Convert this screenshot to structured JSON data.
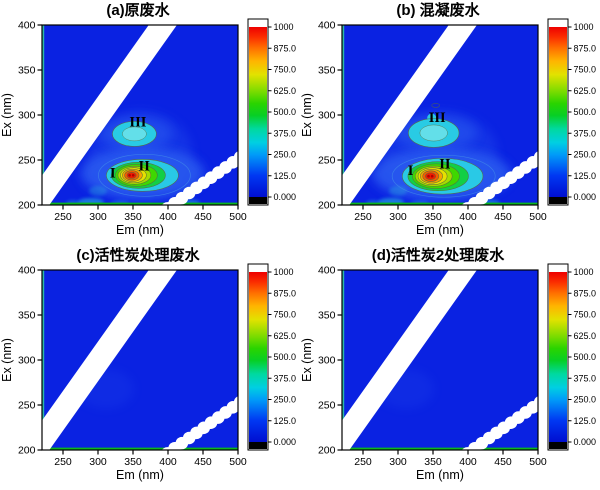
{
  "style": {
    "bg": "#0a22e2",
    "halo": "#2a5cf0",
    "cyan_blob": "#29cbe4",
    "cyan_blob_light": "#63dfe9",
    "left_strip": "#2cb8a6",
    "bottom_strip": "#0cb41e",
    "band": "#ffffff",
    "frame": "#000000",
    "contour_line": "#5a6e3c",
    "outer_contour": "#3f86e8",
    "core_dot": "#b20000",
    "ring_colors": [
      "#29c9e6",
      "#12cf45",
      "#3fd800",
      "#a6dc00",
      "#e6e000",
      "#f5a300",
      "#f55a00",
      "#ee1c00"
    ],
    "smudge": "#2fd0d8",
    "colorbar_over": "#ffffff",
    "colorbar_under": "#000000",
    "colorbar_stops": [
      [
        "0",
        "#000ed0"
      ],
      [
        "0.125",
        "#0037f2"
      ],
      [
        "0.25",
        "#009cf8"
      ],
      [
        "0.32",
        "#00cfe2"
      ],
      [
        "0.40",
        "#00d9a0"
      ],
      [
        "0.48",
        "#07cf25"
      ],
      [
        "0.55",
        "#2ad400"
      ],
      [
        "0.625",
        "#7fdc00"
      ],
      [
        "0.72",
        "#e2e200"
      ],
      [
        "0.80",
        "#ffb400"
      ],
      [
        "0.875",
        "#ff7000"
      ],
      [
        "0.94",
        "#fb2e00"
      ],
      [
        "1",
        "#ee0000"
      ]
    ]
  },
  "chart_data": [
    {
      "type": "heatmap",
      "panel": "a",
      "title": "(a)原废水",
      "xlabel": "Em (nm)",
      "ylabel": "Ex (nm)",
      "xlim": [
        220,
        500
      ],
      "ylim": [
        200,
        400
      ],
      "zlim": [
        0,
        1000
      ],
      "x_ticks": [
        250,
        300,
        350,
        400,
        450,
        500
      ],
      "y_ticks": [
        200,
        250,
        300,
        350,
        400
      ],
      "colorbar_ticks": [
        "1000",
        "875.0",
        "750.0",
        "625.0",
        "500.0",
        "375.0",
        "250.0",
        "125.0",
        "0.000"
      ],
      "background_intensity": 60,
      "rayleigh_bands": [
        "first-order Em≈Ex",
        "second-order Em≈2Ex"
      ],
      "region_labels": [
        {
          "text": "I",
          "em": 321,
          "ex": 236
        },
        {
          "text": "II",
          "em": 366,
          "ex": 244
        },
        {
          "text": "III",
          "em": 357,
          "ex": 293
        }
      ],
      "peaks": [
        {
          "region": "II",
          "em": 352,
          "ex": 233,
          "intensity": 1000,
          "scale": 1.0
        },
        {
          "region": "III",
          "em": 352,
          "ex": 279,
          "intensity": 280,
          "scale": 1.0
        }
      ]
    },
    {
      "type": "heatmap",
      "panel": "b",
      "title": "(b) 混凝废水",
      "xlabel": "Em (nm)",
      "ylabel": "Ex (nm)",
      "xlim": [
        220,
        500
      ],
      "ylim": [
        200,
        400
      ],
      "zlim": [
        0,
        1000
      ],
      "x_ticks": [
        250,
        300,
        350,
        400,
        450,
        500
      ],
      "y_ticks": [
        200,
        250,
        300,
        350,
        400
      ],
      "colorbar_ticks": [
        "1000",
        "875.0",
        "750.0",
        "625.0",
        "500.0",
        "375.0",
        "250.0",
        "125.0",
        "0.000"
      ],
      "background_intensity": 60,
      "rayleigh_bands": [
        "first-order Em≈Ex",
        "second-order Em≈2Ex"
      ],
      "region_labels": [
        {
          "text": "I",
          "em": 318,
          "ex": 239
        },
        {
          "text": "II",
          "em": 367,
          "ex": 246
        },
        {
          "text": "III",
          "em": 356,
          "ex": 298
        }
      ],
      "peaks": [
        {
          "region": "II",
          "em": 351,
          "ex": 232,
          "intensity": 1000,
          "scale": 1.12
        },
        {
          "region": "III",
          "em": 351,
          "ex": 280,
          "intensity": 320,
          "scale": 1.15
        }
      ]
    },
    {
      "type": "heatmap",
      "panel": "c",
      "title": "(c)活性炭处理废水",
      "xlabel": "Em (nm)",
      "ylabel": "Ex (nm)",
      "xlim": [
        220,
        500
      ],
      "ylim": [
        200,
        400
      ],
      "zlim": [
        0,
        1000
      ],
      "x_ticks": [
        250,
        300,
        350,
        400,
        450,
        500
      ],
      "y_ticks": [
        200,
        250,
        300,
        350,
        400
      ],
      "colorbar_ticks": [
        "1000",
        "875.0",
        "750.0",
        "625.0",
        "500.0",
        "375.0",
        "250.0",
        "125.0",
        "0.000"
      ],
      "background_intensity": 50,
      "rayleigh_bands": [
        "first-order Em≈Ex",
        "second-order Em≈2Ex"
      ],
      "region_labels": [],
      "peaks": []
    },
    {
      "type": "heatmap",
      "panel": "d",
      "title": "(d)活性炭2处理废水",
      "xlabel": "Em (nm)",
      "ylabel": "Ex (nm)",
      "xlim": [
        220,
        500
      ],
      "ylim": [
        200,
        400
      ],
      "zlim": [
        0,
        1000
      ],
      "x_ticks": [
        250,
        300,
        350,
        400,
        450,
        500
      ],
      "y_ticks": [
        200,
        250,
        300,
        350,
        400
      ],
      "colorbar_ticks": [
        "1000",
        "875.0",
        "750.0",
        "625.0",
        "500.0",
        "375.0",
        "250.0",
        "125.0",
        "0.000"
      ],
      "background_intensity": 50,
      "rayleigh_bands": [
        "first-order Em≈Ex",
        "second-order Em≈2Ex"
      ],
      "region_labels": [],
      "peaks": []
    }
  ]
}
